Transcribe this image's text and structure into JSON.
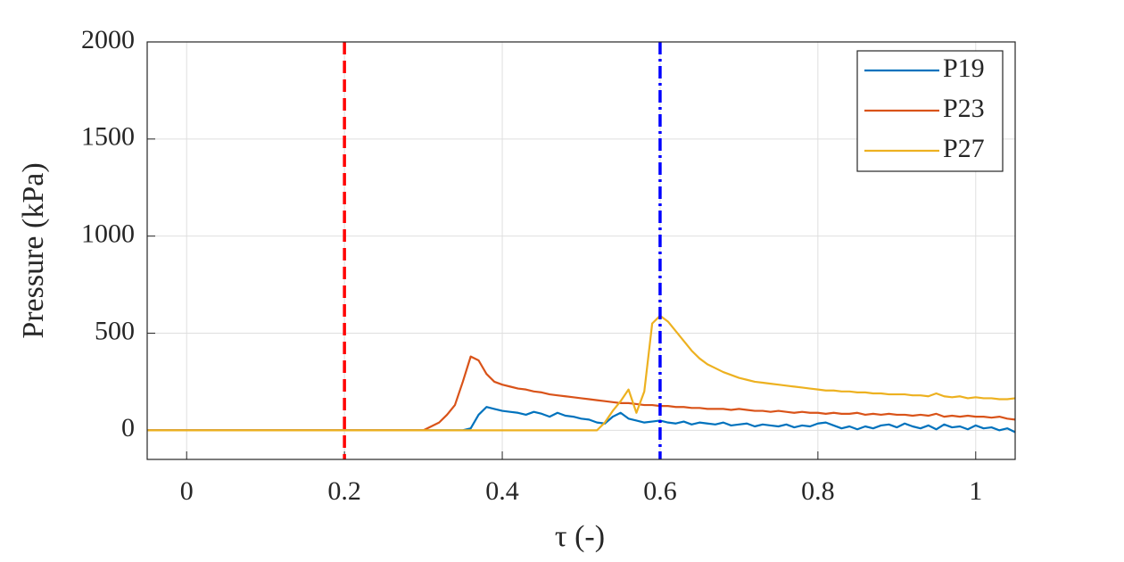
{
  "chart_data": {
    "type": "line",
    "xlabel": "τ (-)",
    "ylabel": "Pressure (kPa)",
    "x": [
      -0.05,
      -0.04,
      -0.03,
      -0.02,
      -0.01,
      0,
      0.01,
      0.02,
      0.03,
      0.04,
      0.05,
      0.06,
      0.07,
      0.08,
      0.09,
      0.1,
      0.11,
      0.12,
      0.13,
      0.14,
      0.15,
      0.16,
      0.17,
      0.18,
      0.19,
      0.2,
      0.21,
      0.22,
      0.23,
      0.24,
      0.25,
      0.26,
      0.27,
      0.28,
      0.29,
      0.3,
      0.31,
      0.32,
      0.33,
      0.34,
      0.35,
      0.36,
      0.37,
      0.38,
      0.39,
      0.4,
      0.41,
      0.42,
      0.43,
      0.44,
      0.45,
      0.46,
      0.47,
      0.48,
      0.49,
      0.5,
      0.51,
      0.52,
      0.53,
      0.54,
      0.55,
      0.56,
      0.57,
      0.58,
      0.59,
      0.6,
      0.61,
      0.62,
      0.63,
      0.64,
      0.65,
      0.66,
      0.67,
      0.68,
      0.69,
      0.7,
      0.71,
      0.72,
      0.73,
      0.74,
      0.75,
      0.76,
      0.77,
      0.78,
      0.79,
      0.8,
      0.81,
      0.82,
      0.83,
      0.84,
      0.85,
      0.86,
      0.87,
      0.88,
      0.89,
      0.9,
      0.91,
      0.92,
      0.93,
      0.94,
      0.95,
      0.96,
      0.97,
      0.98,
      0.99,
      1,
      1.01,
      1.02,
      1.03,
      1.04,
      1.05
    ],
    "series": [
      {
        "name": "P19",
        "color": "#0072bd",
        "values": [
          0,
          0,
          0,
          0,
          0,
          0,
          0,
          0,
          0,
          0,
          0,
          0,
          0,
          0,
          0,
          0,
          0,
          0,
          0,
          0,
          0,
          0,
          0,
          0,
          0,
          0,
          0,
          0,
          0,
          0,
          0,
          0,
          0,
          0,
          0,
          0,
          0,
          0,
          0,
          0,
          0,
          10,
          80,
          120,
          110,
          100,
          95,
          90,
          80,
          95,
          85,
          70,
          90,
          75,
          70,
          60,
          55,
          40,
          35,
          70,
          90,
          60,
          50,
          40,
          45,
          50,
          40,
          35,
          45,
          30,
          40,
          35,
          30,
          40,
          25,
          30,
          35,
          20,
          30,
          25,
          20,
          30,
          15,
          25,
          20,
          35,
          40,
          25,
          10,
          20,
          5,
          20,
          10,
          25,
          30,
          15,
          35,
          20,
          10,
          25,
          5,
          30,
          15,
          20,
          5,
          25,
          10,
          15,
          0,
          10,
          -10
        ]
      },
      {
        "name": "P23",
        "color": "#d95319",
        "values": [
          0,
          0,
          0,
          0,
          0,
          0,
          0,
          0,
          0,
          0,
          0,
          0,
          0,
          0,
          0,
          0,
          0,
          0,
          0,
          0,
          0,
          0,
          0,
          0,
          0,
          0,
          0,
          0,
          0,
          0,
          0,
          0,
          0,
          0,
          0,
          0,
          20,
          40,
          80,
          130,
          250,
          380,
          360,
          290,
          250,
          235,
          225,
          215,
          210,
          200,
          195,
          185,
          180,
          175,
          170,
          165,
          160,
          155,
          150,
          145,
          140,
          140,
          135,
          130,
          130,
          125,
          125,
          120,
          120,
          115,
          115,
          110,
          110,
          110,
          105,
          110,
          105,
          100,
          100,
          95,
          100,
          95,
          90,
          95,
          90,
          90,
          85,
          90,
          85,
          85,
          90,
          80,
          85,
          80,
          85,
          80,
          80,
          75,
          80,
          75,
          85,
          70,
          75,
          70,
          75,
          70,
          70,
          65,
          70,
          60,
          55
        ]
      },
      {
        "name": "P27",
        "color": "#edb120",
        "values": [
          0,
          0,
          0,
          0,
          0,
          0,
          0,
          0,
          0,
          0,
          0,
          0,
          0,
          0,
          0,
          0,
          0,
          0,
          0,
          0,
          0,
          0,
          0,
          0,
          0,
          0,
          0,
          0,
          0,
          0,
          0,
          0,
          0,
          0,
          0,
          0,
          0,
          0,
          0,
          0,
          0,
          0,
          0,
          0,
          0,
          0,
          0,
          0,
          0,
          0,
          0,
          0,
          0,
          0,
          0,
          0,
          0,
          0,
          40,
          100,
          150,
          210,
          90,
          200,
          550,
          590,
          560,
          510,
          460,
          410,
          370,
          340,
          320,
          300,
          285,
          270,
          260,
          250,
          245,
          240,
          235,
          230,
          225,
          220,
          215,
          210,
          205,
          205,
          200,
          200,
          195,
          195,
          190,
          190,
          185,
          185,
          185,
          180,
          180,
          175,
          190,
          175,
          170,
          175,
          165,
          170,
          165,
          165,
          160,
          160,
          165
        ]
      }
    ],
    "vertical_lines": [
      {
        "x": 0.2,
        "color": "#ff0000",
        "style": "dashed"
      },
      {
        "x": 0.6,
        "color": "#0000ff",
        "style": "dashdot"
      }
    ],
    "xlim": [
      -0.05,
      1.05
    ],
    "xticks": [
      0,
      0.2,
      0.4,
      0.6,
      0.8,
      1
    ],
    "ylim": [
      -150,
      2000
    ],
    "yticks": [
      0,
      500,
      1000,
      1500,
      2000
    ],
    "grid": true,
    "legend": "top-right"
  }
}
